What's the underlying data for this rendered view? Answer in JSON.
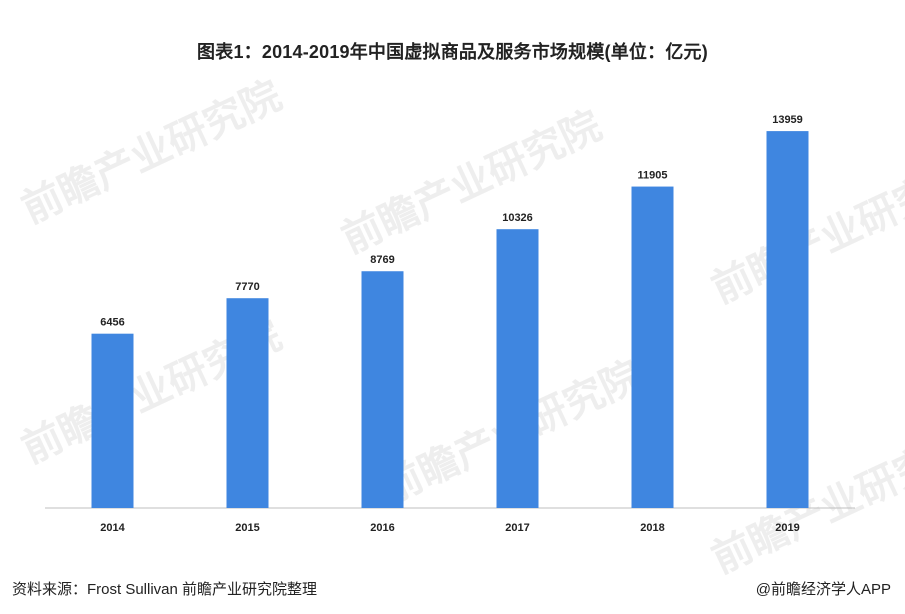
{
  "title": "图表1：2014-2019年中国虚拟商品及服务市场规模(单位：亿元)",
  "watermark": "前瞻产业研究院",
  "source": "资料来源：Frost Sullivan 前瞻产业研究院整理",
  "brand": "@前瞻经济学人APP",
  "colors": {
    "bar": "#3f86e0",
    "axis": "#bfbfbf",
    "text": "#222222"
  },
  "chart_data": {
    "type": "bar",
    "categories": [
      "2014",
      "2015",
      "2016",
      "2017",
      "2018",
      "2019"
    ],
    "values": [
      6456,
      7770,
      8769,
      10326,
      11905,
      13959
    ],
    "title": "图表1：2014-2019年中国虚拟商品及服务市场规模(单位：亿元)",
    "xlabel": "",
    "ylabel": "",
    "ylim": [
      0,
      14000
    ],
    "grid": false,
    "legend": "none",
    "data_labels": true
  }
}
